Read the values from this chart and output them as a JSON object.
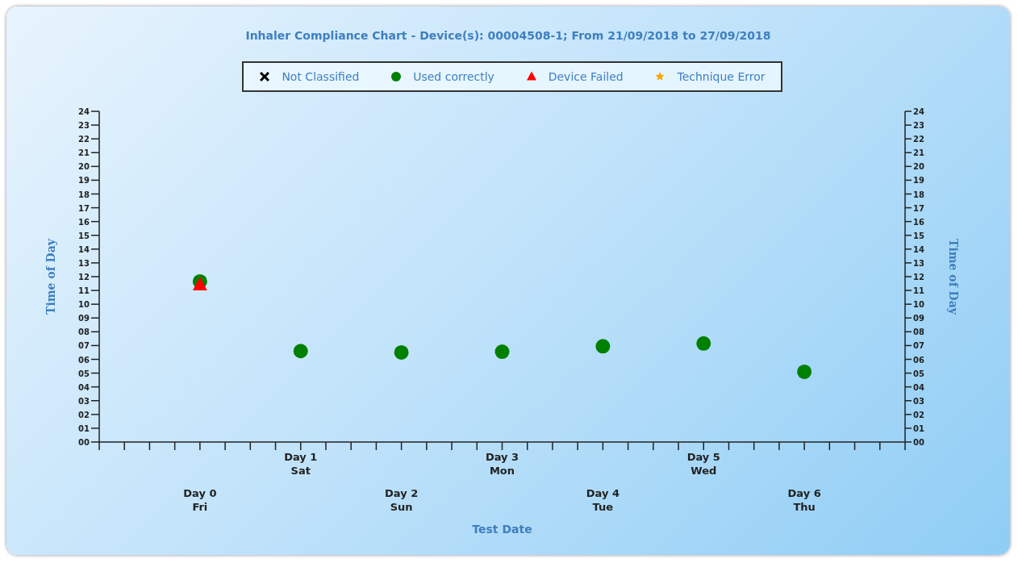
{
  "chart_data": {
    "type": "scatter",
    "title": "Inhaler Compliance Chart - Device(s): 00004508-1; From 21/09/2018 to 27/09/2018",
    "xlabel": "Test Date",
    "ylabel": "Time of Day",
    "y2label": "Time of Day",
    "legend": "top",
    "categories": [
      "Day 0\nFri",
      "Day 1\nSat",
      "Day 2\nSun",
      "Day 3\nMon",
      "Day 4\nTue",
      "Day 5\nWed",
      "Day 6\nThu"
    ],
    "ylim": [
      0,
      24
    ],
    "yticks": [
      {
        "value": 0,
        "label": "00"
      },
      {
        "value": 1,
        "label": "01"
      },
      {
        "value": 2,
        "label": "02"
      },
      {
        "value": 3,
        "label": "03"
      },
      {
        "value": 4,
        "label": "04"
      },
      {
        "value": 5,
        "label": "05"
      },
      {
        "value": 6,
        "label": "06"
      },
      {
        "value": 7,
        "label": "07"
      },
      {
        "value": 8,
        "label": "08"
      },
      {
        "value": 9,
        "label": "09"
      },
      {
        "value": 10,
        "label": "10"
      },
      {
        "value": 11,
        "label": "11"
      },
      {
        "value": 12,
        "label": "12"
      },
      {
        "value": 13,
        "label": "13"
      },
      {
        "value": 14,
        "label": "14"
      },
      {
        "value": 15,
        "label": "15"
      },
      {
        "value": 16,
        "label": "16"
      },
      {
        "value": 17,
        "label": "17"
      },
      {
        "value": 18,
        "label": "18"
      },
      {
        "value": 19,
        "label": "19"
      },
      {
        "value": 20,
        "label": "20"
      },
      {
        "value": 21,
        "label": "21"
      },
      {
        "value": 22,
        "label": "22"
      },
      {
        "value": 23,
        "label": "23"
      },
      {
        "value": 24,
        "label": "24"
      }
    ],
    "y2lim": [
      0,
      24
    ],
    "y2ticks": [
      {
        "value": 0,
        "label": "00"
      },
      {
        "value": 1,
        "label": "01"
      },
      {
        "value": 2,
        "label": "02"
      },
      {
        "value": 3,
        "label": "03"
      },
      {
        "value": 4,
        "label": "04"
      },
      {
        "value": 5,
        "label": "05"
      },
      {
        "value": 6,
        "label": "06"
      },
      {
        "value": 7,
        "label": "07"
      },
      {
        "value": 8,
        "label": "08"
      },
      {
        "value": 9,
        "label": "09"
      },
      {
        "value": 10,
        "label": "10"
      },
      {
        "value": 11,
        "label": "11"
      },
      {
        "value": 12,
        "label": "12"
      },
      {
        "value": 13,
        "label": "13"
      },
      {
        "value": 14,
        "label": "14"
      },
      {
        "value": 15,
        "label": "15"
      },
      {
        "value": 16,
        "label": "16"
      },
      {
        "value": 17,
        "label": "17"
      },
      {
        "value": 18,
        "label": "18"
      },
      {
        "value": 19,
        "label": "19"
      },
      {
        "value": 20,
        "label": "20"
      },
      {
        "value": 21,
        "label": "21"
      },
      {
        "value": 22,
        "label": "22"
      },
      {
        "value": 23,
        "label": "23"
      },
      {
        "value": 24,
        "label": "24"
      }
    ],
    "series": [
      {
        "name": "Not Classified",
        "color": "#000000",
        "marker": "cross",
        "values": [
          null,
          null,
          null,
          null,
          null,
          null,
          null
        ]
      },
      {
        "name": "Used correctly",
        "color": "#008000",
        "marker": "circle",
        "values": [
          11.65,
          6.6,
          6.5,
          6.55,
          6.95,
          7.15,
          5.1
        ]
      },
      {
        "name": "Device Failed",
        "color": "#ff0000",
        "marker": "triangle",
        "values": [
          11.4,
          null,
          null,
          null,
          null,
          null,
          null
        ]
      },
      {
        "name": "Technique Error",
        "color": "#ffa500",
        "marker": "star",
        "values": [
          null,
          null,
          null,
          null,
          null,
          null,
          null
        ]
      }
    ]
  }
}
